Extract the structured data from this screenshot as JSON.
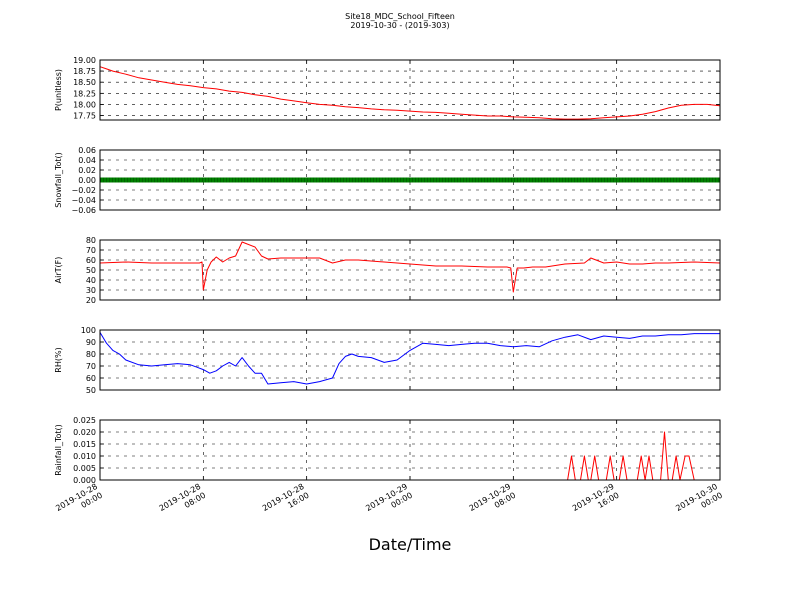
{
  "title_line1": "Site18_MDC_School_Fifteen",
  "title_line2": "2019-10-30 - (2019-303)",
  "xlabel": "Date/Time",
  "x_ticks": [
    {
      "line1": "2019-10-28",
      "line2": "00:00",
      "hour": 0
    },
    {
      "line1": "2019-10-28",
      "line2": "08:00",
      "hour": 8
    },
    {
      "line1": "2019-10-28",
      "line2": "16:00",
      "hour": 16
    },
    {
      "line1": "2019-10-29",
      "line2": "00:00",
      "hour": 24
    },
    {
      "line1": "2019-10-29",
      "line2": "08:00",
      "hour": 32
    },
    {
      "line1": "2019-10-29",
      "line2": "16:00",
      "hour": 40
    },
    {
      "line1": "2019-10-30",
      "line2": "00:00",
      "hour": 48
    }
  ],
  "chart_data": [
    {
      "type": "line",
      "ylabel": "P(unitless)",
      "ylim": [
        17.65,
        19.0
      ],
      "yticks": [
        "19.00",
        "18.75",
        "18.50",
        "18.25",
        "18.00",
        "17.75"
      ],
      "ytick_values": [
        19.0,
        18.75,
        18.5,
        18.25,
        18.0,
        17.75
      ],
      "grid": true,
      "color": "#ff0000",
      "x": [
        0,
        0.5,
        1,
        2,
        3,
        4,
        5,
        6,
        7,
        8,
        9,
        10,
        11,
        12,
        13,
        14,
        15,
        16,
        17,
        18,
        19,
        20,
        21,
        22,
        23,
        24,
        25,
        26,
        27,
        28,
        29,
        30,
        31,
        32,
        33,
        34,
        35,
        36,
        37,
        38,
        39,
        40,
        41,
        42,
        43,
        44,
        45,
        46,
        47,
        48
      ],
      "values": [
        18.85,
        18.8,
        18.75,
        18.68,
        18.6,
        18.55,
        18.5,
        18.45,
        18.42,
        18.38,
        18.35,
        18.3,
        18.27,
        18.22,
        18.18,
        18.12,
        18.08,
        18.04,
        18.0,
        17.98,
        17.95,
        17.93,
        17.9,
        17.88,
        17.87,
        17.85,
        17.83,
        17.82,
        17.8,
        17.78,
        17.76,
        17.74,
        17.74,
        17.72,
        17.71,
        17.7,
        17.68,
        17.67,
        17.67,
        17.68,
        17.7,
        17.72,
        17.74,
        17.78,
        17.84,
        17.92,
        17.98,
        18.0,
        18.0,
        17.97
      ]
    },
    {
      "type": "line",
      "ylabel": "Snowfall_Tot()",
      "ylim": [
        -0.06,
        0.06
      ],
      "yticks": [
        "0.06",
        "0.04",
        "0.02",
        "0.00",
        "−0.02",
        "−0.04",
        "−0.06"
      ],
      "ytick_values": [
        0.06,
        0.04,
        0.02,
        0.0,
        -0.02,
        -0.04,
        -0.06
      ],
      "grid": true,
      "color": "#008000",
      "x": [
        0,
        48
      ],
      "values": [
        0,
        0
      ]
    },
    {
      "type": "line",
      "ylabel": "AirT(F)",
      "ylim": [
        20,
        80
      ],
      "yticks": [
        "80",
        "70",
        "60",
        "50",
        "40",
        "30",
        "20"
      ],
      "ytick_values": [
        80,
        70,
        60,
        50,
        40,
        30,
        20
      ],
      "grid": true,
      "color": "#ff0000",
      "x": [
        0,
        2,
        4,
        6,
        7.7,
        7.9,
        8.0,
        8.3,
        8.6,
        9,
        9.5,
        10,
        10.5,
        11,
        12,
        12.5,
        13,
        14,
        16,
        17,
        18,
        19,
        20,
        22,
        24,
        26,
        28,
        30,
        31.5,
        31.8,
        32.0,
        32.3,
        32.8,
        33.5,
        34.5,
        36,
        37.5,
        38,
        39,
        40,
        41,
        42,
        43,
        44,
        46,
        48
      ],
      "values": [
        57,
        58,
        57,
        57,
        57,
        58,
        30,
        50,
        58,
        63,
        58,
        62,
        64,
        78,
        73,
        64,
        61,
        62,
        62,
        62,
        57,
        60,
        60,
        58,
        56,
        54,
        54,
        53,
        53,
        52,
        28,
        52,
        52,
        53,
        53,
        56,
        57,
        62,
        57,
        58,
        56,
        56,
        57,
        57,
        58,
        57
      ]
    },
    {
      "type": "line",
      "ylabel": "RH(%)",
      "ylim": [
        50,
        100
      ],
      "yticks": [
        "100",
        "90",
        "80",
        "70",
        "60",
        "50"
      ],
      "ytick_values": [
        100,
        90,
        80,
        70,
        60,
        50
      ],
      "grid": true,
      "color": "#0000ff",
      "x": [
        0,
        0.5,
        1,
        1.5,
        2,
        3,
        4,
        5,
        6,
        7,
        7.5,
        8,
        8.5,
        9,
        9.5,
        10,
        10.5,
        11,
        11.5,
        12,
        12.5,
        13,
        14,
        15,
        16,
        17,
        18,
        18.5,
        19,
        19.5,
        20,
        21,
        22,
        23,
        24,
        25,
        26,
        27,
        28,
        29,
        30,
        31,
        32,
        33,
        34,
        35,
        36,
        37,
        38,
        39,
        40,
        41,
        42,
        43,
        44,
        45,
        46,
        48
      ],
      "values": [
        98,
        89,
        83,
        80,
        75,
        71,
        70,
        71,
        72,
        71,
        69,
        67,
        64,
        66,
        70,
        73,
        70,
        77,
        70,
        64,
        64,
        55,
        56,
        57,
        55,
        57,
        60,
        72,
        78,
        80,
        78,
        77,
        73,
        75,
        83,
        89,
        88,
        87,
        88,
        89,
        89,
        87,
        86,
        87,
        86,
        91,
        94,
        96,
        92,
        95,
        94,
        93,
        95,
        95,
        96,
        96,
        97,
        97
      ]
    },
    {
      "type": "line",
      "ylabel": "Rainfall_Tot()",
      "ylim": [
        0,
        0.025
      ],
      "yticks": [
        "0.025",
        "0.020",
        "0.015",
        "0.010",
        "0.005",
        "0.000"
      ],
      "ytick_values": [
        0.025,
        0.02,
        0.015,
        0.01,
        0.005,
        0.0
      ],
      "grid": true,
      "color": "#ff0000",
      "x": [
        0,
        36.2,
        36.5,
        36.8,
        37.2,
        37.5,
        37.8,
        38,
        38.3,
        38.6,
        39.2,
        39.5,
        39.8,
        40.2,
        40.5,
        40.8,
        41.6,
        41.9,
        42.2,
        42.5,
        42.8,
        43.4,
        43.7,
        44.0,
        44.3,
        44.6,
        44.9,
        45.3,
        45.6,
        46.0,
        48
      ],
      "values": [
        0,
        0,
        0.01,
        0,
        0,
        0.01,
        0,
        0,
        0.01,
        0,
        0,
        0.01,
        0,
        0,
        0.01,
        0,
        0,
        0.01,
        0,
        0.01,
        0,
        0,
        0.02,
        0,
        0,
        0.01,
        0,
        0.01,
        0.01,
        0,
        0
      ]
    }
  ]
}
